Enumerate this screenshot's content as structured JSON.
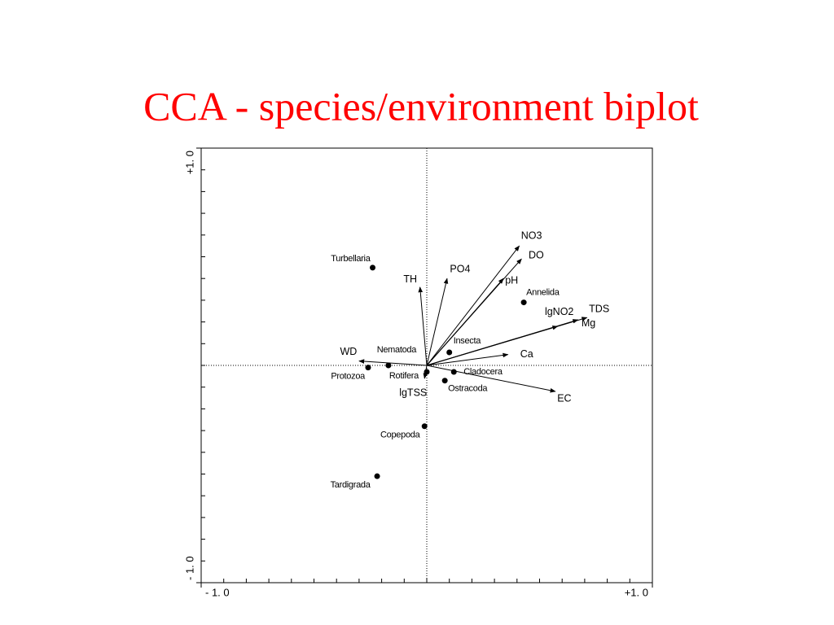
{
  "chart_data": {
    "type": "biplot",
    "title": "CCA - species/environment biplot",
    "xlim": [
      -1,
      1
    ],
    "ylim": [
      -1,
      1
    ],
    "xticks": [
      {
        "value": -1,
        "label": "- 1. 0"
      },
      {
        "value": 1,
        "label": "+1. 0"
      }
    ],
    "yticks": [
      {
        "value": -1,
        "label": "- 1. 0"
      },
      {
        "value": 1,
        "label": "+1. 0"
      }
    ],
    "xminorticks": [
      -0.9,
      -0.8,
      -0.7,
      -0.6,
      -0.5,
      -0.4,
      -0.3,
      -0.2,
      -0.1,
      0,
      0.1,
      0.2,
      0.3,
      0.4,
      0.5,
      0.6,
      0.7,
      0.8,
      0.9
    ],
    "yminorticks": [
      -0.9,
      -0.8,
      -0.7,
      -0.6,
      -0.5,
      -0.4,
      -0.3,
      -0.2,
      -0.1,
      0,
      0.1,
      0.2,
      0.3,
      0.4,
      0.5,
      0.6,
      0.7,
      0.8,
      0.9
    ],
    "color": "#000000",
    "points": {
      "labels": [
        "Turbellaria",
        "Annelida",
        "Insecta",
        "Nematoda",
        "Protozoa",
        "Rotifera",
        "Cladocera",
        "Ostracoda",
        "Copepoda",
        "Tardigrada"
      ],
      "x": [
        -0.24,
        0.43,
        0.1,
        -0.17,
        -0.26,
        0.0,
        0.12,
        0.08,
        -0.01,
        -0.22
      ],
      "y": [
        0.45,
        0.29,
        0.06,
        0.0,
        -0.01,
        -0.03,
        -0.03,
        -0.07,
        -0.28,
        -0.51
      ]
    },
    "arrows": {
      "labels": [
        "NO3",
        "DO",
        "pH",
        "PO4",
        "TH",
        "TDS",
        "Mg",
        "lgNO2",
        "Ca",
        "WD",
        "EC",
        "lgTSS"
      ],
      "x": [
        0.41,
        0.42,
        0.34,
        0.09,
        -0.03,
        0.71,
        0.67,
        0.58,
        0.36,
        -0.3,
        0.57,
        -0.01
      ],
      "y": [
        0.55,
        0.49,
        0.4,
        0.4,
        0.36,
        0.22,
        0.21,
        0.18,
        0.05,
        0.02,
        -0.12,
        -0.06
      ]
    }
  }
}
